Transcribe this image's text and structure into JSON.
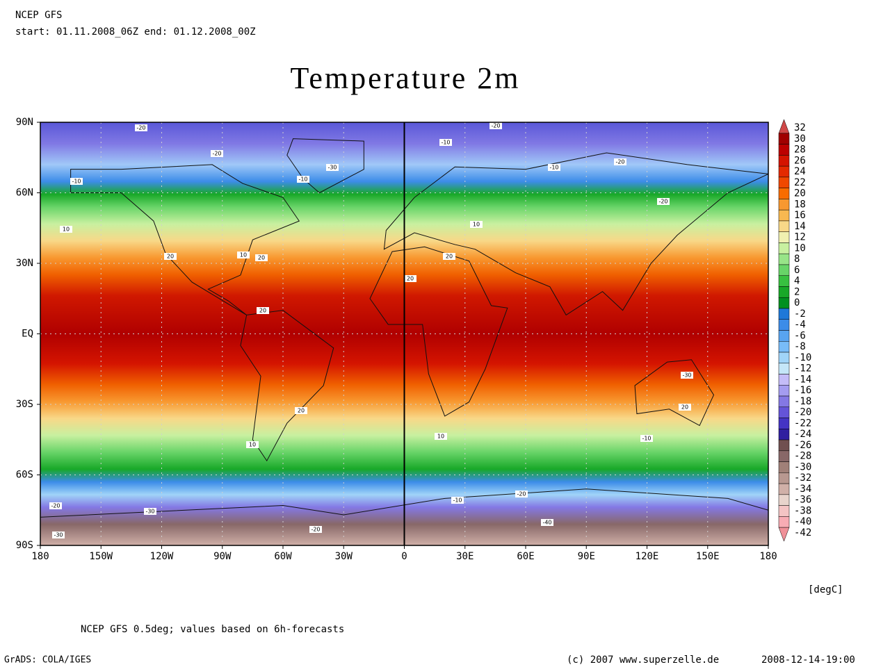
{
  "header": {
    "model": "NCEP GFS",
    "period": "start: 01.11.2008_06Z end: 01.12.2008_00Z"
  },
  "title": "Temperature 2m",
  "map": {
    "x_ticks": [
      {
        "value": -180,
        "label": "180"
      },
      {
        "value": -150,
        "label": "150W"
      },
      {
        "value": -120,
        "label": "120W"
      },
      {
        "value": -90,
        "label": "90W"
      },
      {
        "value": -60,
        "label": "60W"
      },
      {
        "value": -30,
        "label": "30W"
      },
      0,
      {
        "value": 30,
        "label": "30E"
      },
      {
        "value": 60,
        "label": "60E"
      },
      {
        "value": 90,
        "label": "90E"
      },
      {
        "value": 120,
        "label": "120E"
      },
      {
        "value": 150,
        "label": "150E"
      },
      {
        "value": 180,
        "label": "180"
      }
    ],
    "y_ticks": [
      {
        "value": 90,
        "label": "90N"
      },
      {
        "value": 60,
        "label": "60N"
      },
      {
        "value": 30,
        "label": "30N"
      },
      {
        "value": 0,
        "label": "EQ"
      },
      {
        "value": -30,
        "label": "30S"
      },
      {
        "value": -60,
        "label": "60S"
      },
      {
        "value": -90,
        "label": "90S"
      }
    ],
    "contour_labels": [
      "-20",
      "-20",
      "-10",
      "-30",
      "-10",
      "-20",
      "-10",
      "-10",
      "-20",
      "-20",
      "10",
      "20",
      "20",
      "20",
      "10",
      "10",
      "20",
      "20",
      "-30",
      "20",
      "20",
      "10",
      "10",
      "-10",
      "-20",
      "-30",
      "-20",
      "-40",
      "-30",
      "-10",
      "-20"
    ]
  },
  "colorbar": {
    "levels": [
      32,
      30,
      28,
      26,
      24,
      22,
      20,
      18,
      16,
      14,
      12,
      10,
      8,
      6,
      4,
      2,
      0,
      -2,
      -4,
      -6,
      -8,
      -10,
      -12,
      -14,
      -16,
      -18,
      -20,
      -22,
      -24,
      -26,
      -28,
      -30,
      -32,
      -34,
      -36,
      -38,
      -40,
      -42
    ],
    "colors": [
      "#d04848",
      "#a00000",
      "#bc0000",
      "#d41400",
      "#e42a00",
      "#f04800",
      "#f86c00",
      "#f89830",
      "#f8b850",
      "#f8d888",
      "#f0f0b0",
      "#c8f0a0",
      "#98e488",
      "#68d468",
      "#38c040",
      "#18a828",
      "#009020",
      "#1e78d8",
      "#3c8ce8",
      "#58a4f0",
      "#78bcf8",
      "#a0d4f8",
      "#c4e6f8",
      "#c4bcf8",
      "#a49cf0",
      "#8478e4",
      "#6454d8",
      "#4434c4",
      "#3020a0",
      "#705050",
      "#886868",
      "#a08078",
      "#b89890",
      "#d0b0a8",
      "#e8d4cc",
      "#f4c4c4",
      "#f8acb4",
      "#f09098"
    ],
    "unit": "[degC]"
  },
  "footer": {
    "note": "NCEP GFS 0.5deg; values based on 6h-forecasts",
    "software": "GrADS: COLA/IGES",
    "copyright": "(c) 2007 www.superzelle.de",
    "timestamp": "2008-12-14-19:00"
  }
}
